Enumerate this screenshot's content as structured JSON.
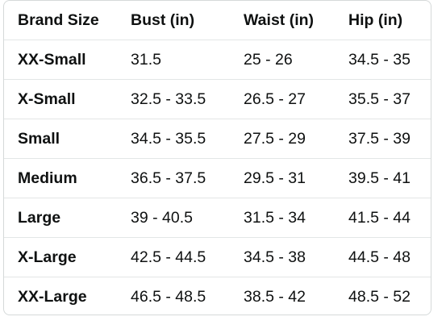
{
  "table": {
    "header": [
      "Brand Size",
      "Bust (in)",
      "Waist (in)",
      "Hip (in)"
    ],
    "rows": [
      [
        "XX-Small",
        "31.5",
        "25 - 26",
        "34.5 - 35"
      ],
      [
        "X-Small",
        "32.5 - 33.5",
        "26.5 - 27",
        "35.5 - 37"
      ],
      [
        "Small",
        "34.5 - 35.5",
        "27.5 - 29",
        "37.5 - 39"
      ],
      [
        "Medium",
        "36.5 - 37.5",
        "29.5 - 31",
        "39.5 - 41"
      ],
      [
        "Large",
        "39 - 40.5",
        "31.5 - 34",
        "41.5 - 44"
      ],
      [
        "X-Large",
        "42.5 - 44.5",
        "34.5 - 38",
        "44.5 - 48"
      ],
      [
        "XX-Large",
        "46.5 - 48.5",
        "38.5 - 42",
        "48.5 - 52"
      ]
    ]
  }
}
